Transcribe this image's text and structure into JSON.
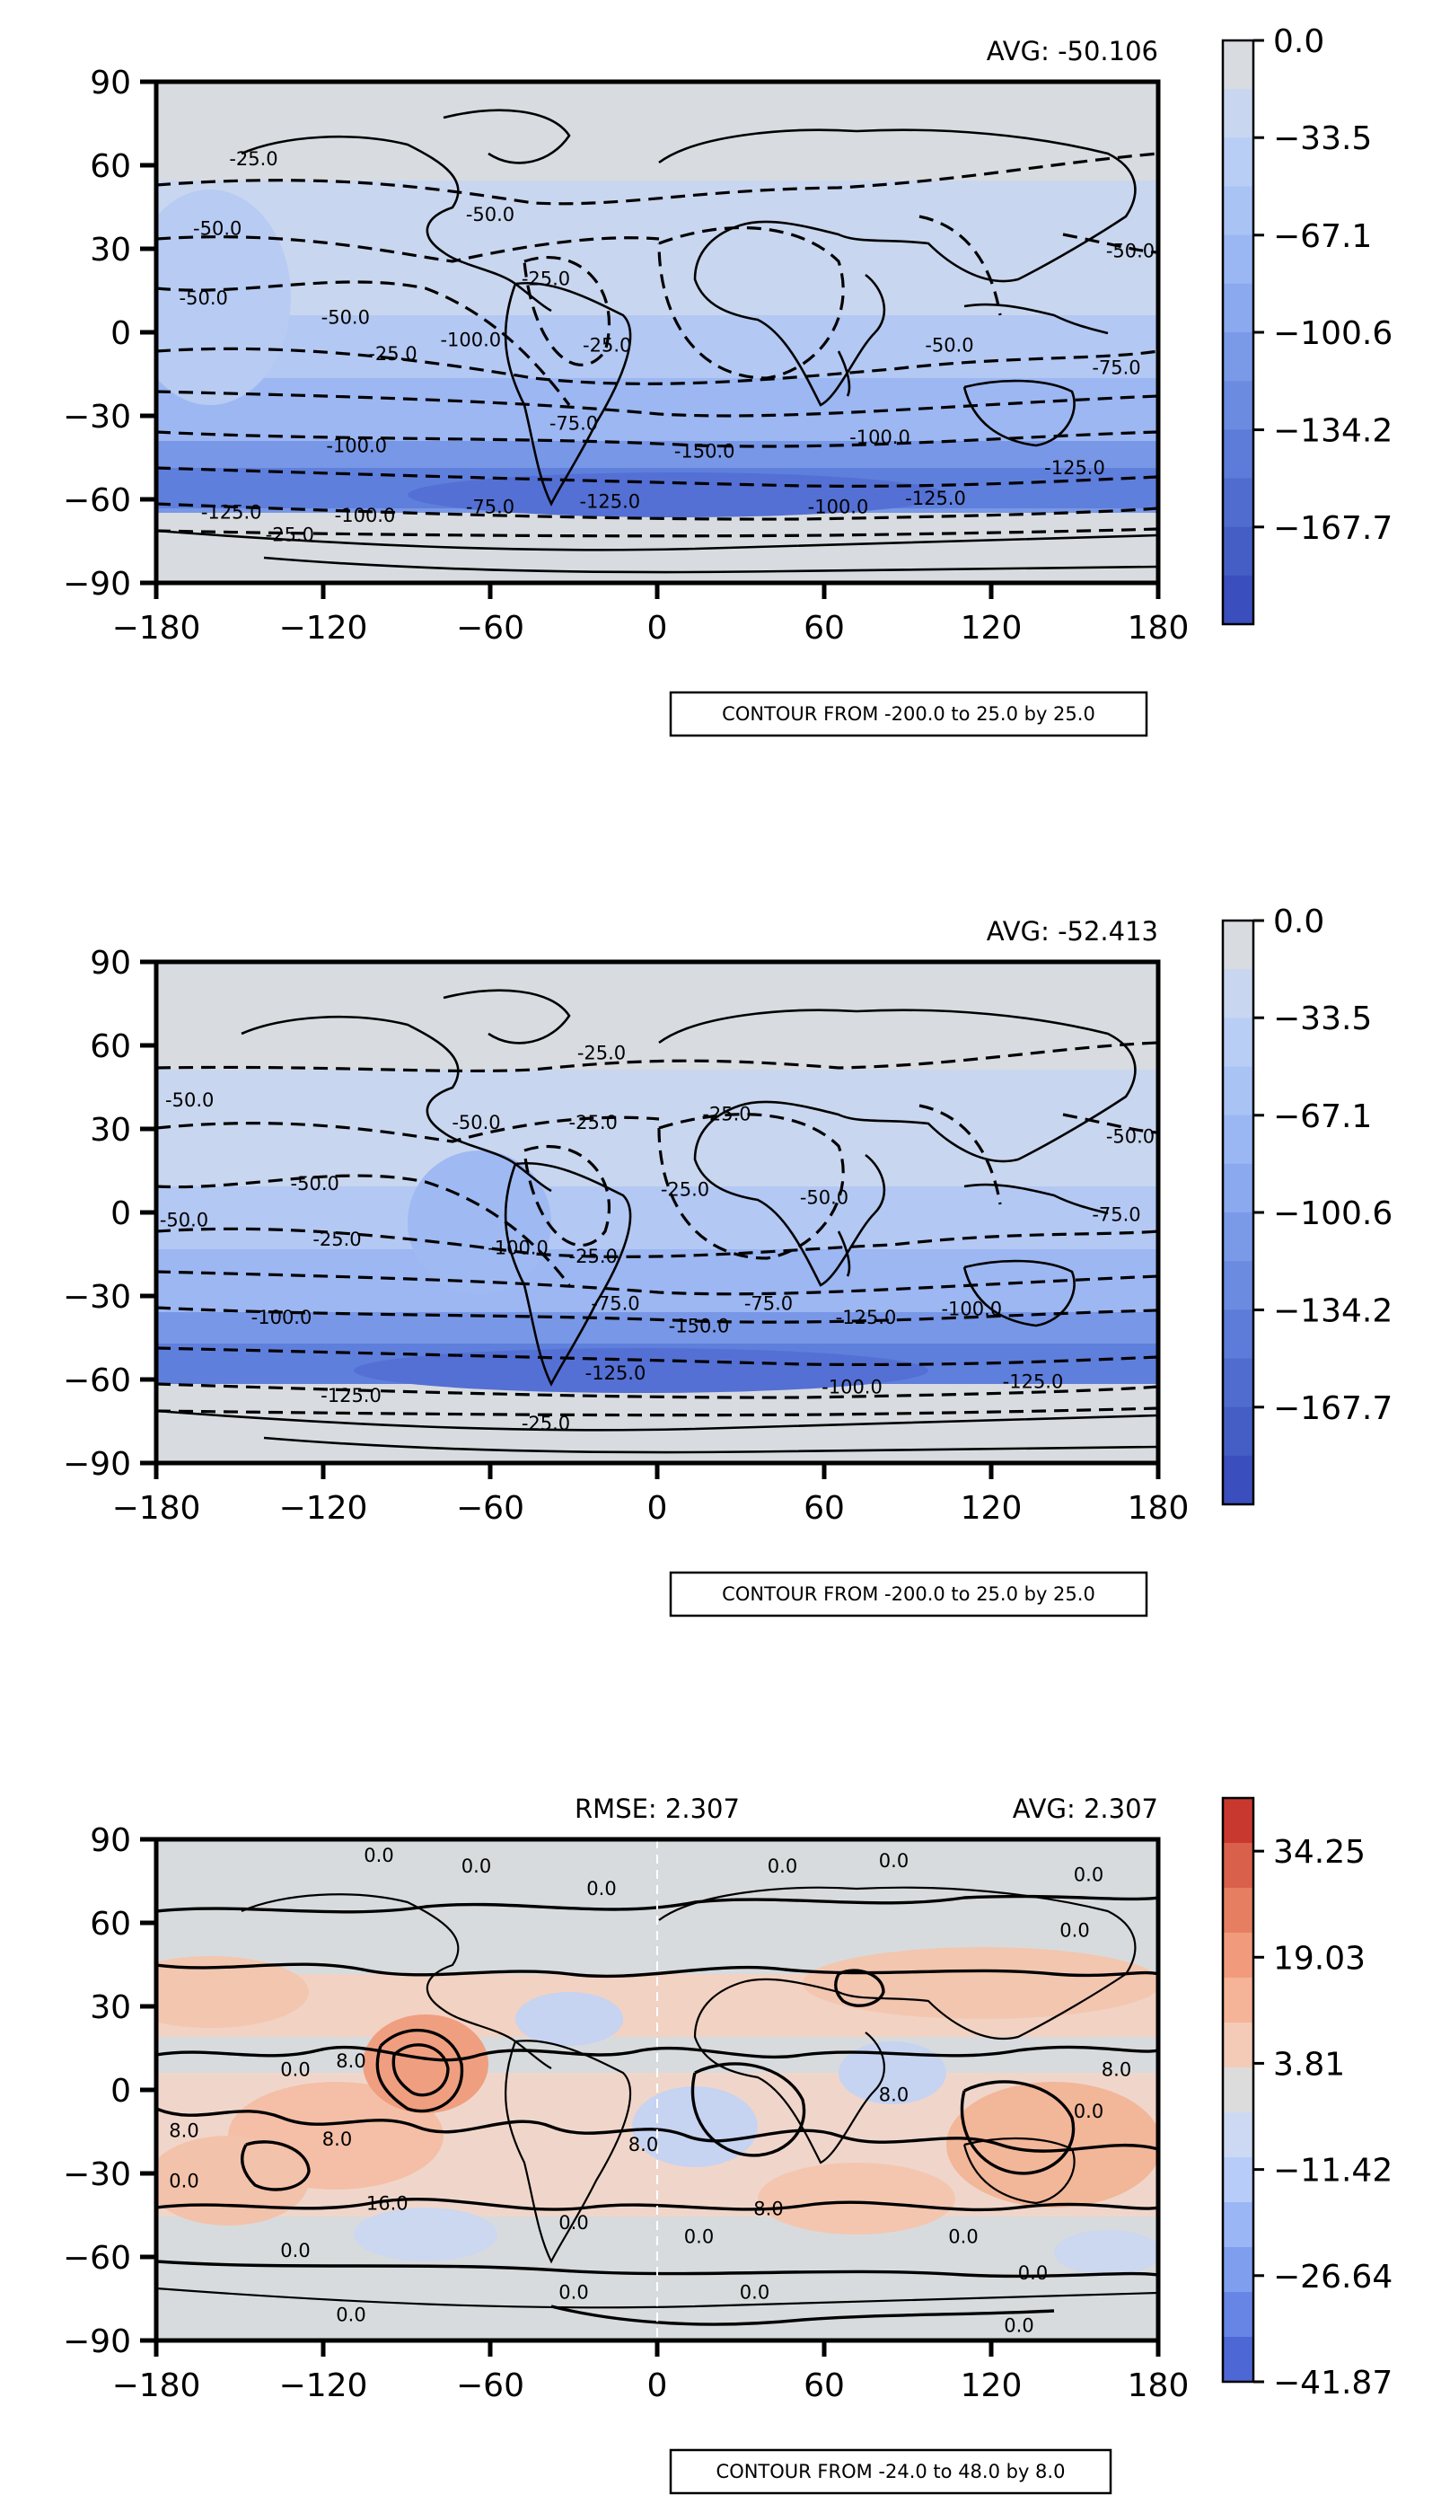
{
  "chart_data": [
    {
      "type": "heatmap",
      "subtype": "global-contour-map",
      "avg_label": "AVG: -50.106",
      "rmse_label": "",
      "box_label": "CONTOUR FROM -200.0 to 25.0 by 25.0",
      "x_ticks": [
        "−180",
        "−120",
        "−60",
        "0",
        "60",
        "120",
        "180"
      ],
      "y_ticks": [
        "90",
        "60",
        "30",
        "0",
        "−30",
        "−60",
        "−90"
      ],
      "xlim": [
        -180,
        180
      ],
      "ylim": [
        -90,
        90
      ],
      "colorbar": {
        "labels": [
          "0.0",
          "−33.5",
          "−67.1",
          "−100.6",
          "−134.2",
          "−167.7"
        ],
        "range": [
          -201.2,
          0
        ],
        "colors": [
          "#d8dce0",
          "#c8d6f0",
          "#b9cef5",
          "#aac3f5",
          "#9ab7f3",
          "#8aa9ee",
          "#7a9ae8",
          "#6b8be0",
          "#5d7bd8",
          "#506ccf",
          "#445ec6",
          "#3a4fbd"
        ]
      },
      "contour_labels": [
        {
          "text": "-25.0",
          "x": -145,
          "y": 60
        },
        {
          "text": "-50.0",
          "x": -158,
          "y": 35
        },
        {
          "text": "-50.0",
          "x": -163,
          "y": 10
        },
        {
          "text": "-50.0",
          "x": -112,
          "y": 3
        },
        {
          "text": "-25.0",
          "x": -95,
          "y": -10
        },
        {
          "text": "-50.0",
          "x": -60,
          "y": 40
        },
        {
          "text": "-25.0",
          "x": -40,
          "y": 17
        },
        {
          "text": "-25.0",
          "x": -18,
          "y": -7
        },
        {
          "text": "-100.0",
          "x": -67,
          "y": -5
        },
        {
          "text": "-75.0",
          "x": -30,
          "y": -35
        },
        {
          "text": "-150.0",
          "x": 17,
          "y": -45
        },
        {
          "text": "-100.0",
          "x": -108,
          "y": -43
        },
        {
          "text": "-75.0",
          "x": -60,
          "y": -65
        },
        {
          "text": "-125.0",
          "x": -17,
          "y": -63
        },
        {
          "text": "-125.0",
          "x": -153,
          "y": -67
        },
        {
          "text": "-100.0",
          "x": -105,
          "y": -68
        },
        {
          "text": "-25.0",
          "x": -132,
          "y": -75
        },
        {
          "text": "-100.0",
          "x": 80,
          "y": -40
        },
        {
          "text": "-125.0",
          "x": 150,
          "y": -51
        },
        {
          "text": "-125.0",
          "x": 100,
          "y": -62
        },
        {
          "text": "-100.0",
          "x": 65,
          "y": -65
        },
        {
          "text": "-50.0",
          "x": 170,
          "y": 27
        },
        {
          "text": "-75.0",
          "x": 165,
          "y": -15
        },
        {
          "text": "-50.0",
          "x": 105,
          "y": -7
        }
      ]
    },
    {
      "type": "heatmap",
      "subtype": "global-contour-map",
      "avg_label": "AVG: -52.413",
      "rmse_label": "",
      "box_label": "CONTOUR FROM -200.0 to 25.0 by 25.0",
      "x_ticks": [
        "−180",
        "−120",
        "−60",
        "0",
        "60",
        "120",
        "180"
      ],
      "y_ticks": [
        "90",
        "60",
        "30",
        "0",
        "−30",
        "−60",
        "−90"
      ],
      "xlim": [
        -180,
        180
      ],
      "ylim": [
        -90,
        90
      ],
      "colorbar": {
        "labels": [
          "0.0",
          "−33.5",
          "−67.1",
          "−100.6",
          "−134.2",
          "−167.7"
        ],
        "range": [
          -201.2,
          0
        ],
        "colors": [
          "#d8dce0",
          "#c8d6f0",
          "#b9cef5",
          "#aac3f5",
          "#9ab7f3",
          "#8aa9ee",
          "#7a9ae8",
          "#6b8be0",
          "#5d7bd8",
          "#506ccf",
          "#445ec6",
          "#3a4fbd"
        ]
      },
      "contour_labels": [
        {
          "text": "-25.0",
          "x": -20,
          "y": 55
        },
        {
          "text": "-50.0",
          "x": -168,
          "y": 38
        },
        {
          "text": "-50.0",
          "x": -65,
          "y": 30
        },
        {
          "text": "-25.0",
          "x": -23,
          "y": 30
        },
        {
          "text": "-25.0",
          "x": 25,
          "y": 33
        },
        {
          "text": "-50.0",
          "x": -123,
          "y": 8
        },
        {
          "text": "-50.0",
          "x": -170,
          "y": -5
        },
        {
          "text": "-25.0",
          "x": -115,
          "y": -12
        },
        {
          "text": "-100.0",
          "x": -50,
          "y": -15
        },
        {
          "text": "-25.0",
          "x": -23,
          "y": -18
        },
        {
          "text": "-25.0",
          "x": 10,
          "y": 6
        },
        {
          "text": "-50.0",
          "x": 60,
          "y": 3
        },
        {
          "text": "-75.0",
          "x": -15,
          "y": -35
        },
        {
          "text": "-150.0",
          "x": 15,
          "y": -43
        },
        {
          "text": "-75.0",
          "x": 40,
          "y": -35
        },
        {
          "text": "-100.0",
          "x": -135,
          "y": -40
        },
        {
          "text": "-125.0",
          "x": -15,
          "y": -60
        },
        {
          "text": "-125.0",
          "x": -110,
          "y": -68
        },
        {
          "text": "-25.0",
          "x": -40,
          "y": -78
        },
        {
          "text": "-125.0",
          "x": 75,
          "y": -40
        },
        {
          "text": "-100.0",
          "x": 113,
          "y": -37
        },
        {
          "text": "-125.0",
          "x": 135,
          "y": -63
        },
        {
          "text": "-100.0",
          "x": 70,
          "y": -65
        },
        {
          "text": "-50.0",
          "x": 170,
          "y": 25
        },
        {
          "text": "-75.0",
          "x": 165,
          "y": -3
        }
      ]
    },
    {
      "type": "heatmap",
      "subtype": "global-contour-map",
      "avg_label": "AVG: 2.307",
      "rmse_label": "RMSE: 2.307",
      "box_label": "CONTOUR FROM -24.0 to 48.0 by 8.0",
      "x_ticks": [
        "−180",
        "−120",
        "−60",
        "0",
        "60",
        "120",
        "180"
      ],
      "y_ticks": [
        "90",
        "60",
        "30",
        "0",
        "−30",
        "−60",
        "−90"
      ],
      "xlim": [
        -180,
        180
      ],
      "ylim": [
        -90,
        90
      ],
      "colorbar": {
        "labels": [
          "34.25",
          "19.03",
          "3.81",
          "−11.42",
          "−26.64",
          "−41.87"
        ],
        "range": [
          -41.87,
          41.87
        ],
        "colors": [
          "#4d67d4",
          "#6685e4",
          "#7f9fee",
          "#9bb6f5",
          "#b7ccf8",
          "#cdd9f2",
          "#dcdcdc",
          "#f3cbb6",
          "#f5b398",
          "#f19b7c",
          "#e67f62",
          "#d9604a",
          "#c9382f"
        ]
      },
      "contour_labels": [
        {
          "text": "0.0",
          "x": -100,
          "y": 82
        },
        {
          "text": "0.0",
          "x": -65,
          "y": 78
        },
        {
          "text": "0.0",
          "x": -20,
          "y": 70
        },
        {
          "text": "0.0",
          "x": 45,
          "y": 78
        },
        {
          "text": "0.0",
          "x": 85,
          "y": 80
        },
        {
          "text": "0.0",
          "x": 155,
          "y": 75
        },
        {
          "text": "0.0",
          "x": 150,
          "y": 55
        },
        {
          "text": "0.0",
          "x": -130,
          "y": 5
        },
        {
          "text": "8.0",
          "x": -110,
          "y": 8
        },
        {
          "text": "8.0",
          "x": -170,
          "y": -17
        },
        {
          "text": "8.0",
          "x": -115,
          "y": -20
        },
        {
          "text": "0.0",
          "x": -170,
          "y": -35
        },
        {
          "text": "16.0",
          "x": -97,
          "y": -43
        },
        {
          "text": "0.0",
          "x": -130,
          "y": -60
        },
        {
          "text": "0.0",
          "x": -30,
          "y": -50
        },
        {
          "text": "8.0",
          "x": -5,
          "y": -22
        },
        {
          "text": "8.0",
          "x": 40,
          "y": -45
        },
        {
          "text": "0.0",
          "x": 15,
          "y": -55
        },
        {
          "text": "8.0",
          "x": 85,
          "y": -4
        },
        {
          "text": "0.0",
          "x": 110,
          "y": -55
        },
        {
          "text": "0.0",
          "x": 135,
          "y": -68
        },
        {
          "text": "0.0",
          "x": 155,
          "y": -10
        },
        {
          "text": "8.0",
          "x": 165,
          "y": 5
        },
        {
          "text": "0.0",
          "x": -110,
          "y": -83
        },
        {
          "text": "0.0",
          "x": -30,
          "y": -75
        },
        {
          "text": "0.0",
          "x": 35,
          "y": -75
        },
        {
          "text": "0.0",
          "x": 130,
          "y": -87
        }
      ]
    }
  ]
}
